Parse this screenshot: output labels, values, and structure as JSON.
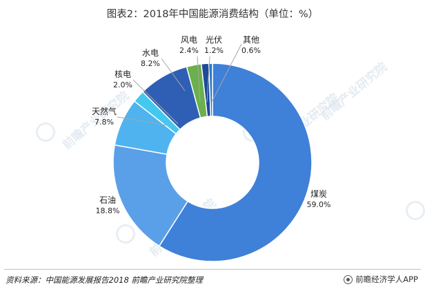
{
  "title": "图表2：2018年中国能源消费结构（单位：%）",
  "source": "资料来源：中国能源发展报告2018  前瞻产业研究院整理",
  "brand": "前瞻经济学人APP",
  "watermark_text": "前瞻产业研究院",
  "colors": {
    "煤炭": "#3f80d8",
    "石油": "#5aa0e8",
    "天然气": "#4fb3f0",
    "核电": "#43c8f0",
    "水电": "#2f5fb4",
    "风电": "#6ab04c",
    "光伏": "#1e4a9c",
    "其他": "#2d7ad0"
  },
  "chart_data": {
    "type": "pie",
    "donut": true,
    "title": "图表2：2018年中国能源消费结构（单位：%）",
    "unit": "%",
    "categories": [
      "煤炭",
      "石油",
      "天然气",
      "核电",
      "水电",
      "风电",
      "光伏",
      "其他"
    ],
    "values": [
      59.0,
      18.8,
      7.8,
      2.0,
      8.2,
      2.4,
      1.2,
      0.6
    ],
    "labels": [
      "59.0%",
      "18.8%",
      "7.8%",
      "2.0%",
      "8.2%",
      "2.4%",
      "1.2%",
      "0.6%"
    ]
  }
}
